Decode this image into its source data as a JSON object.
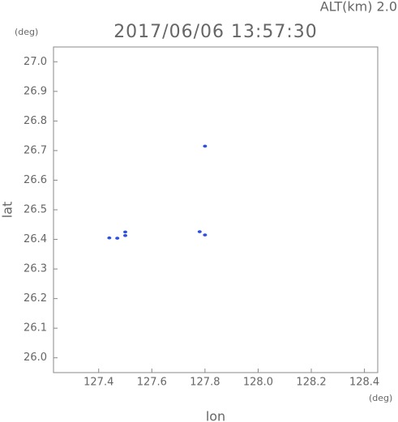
{
  "chart_data": {
    "type": "scatter",
    "title": "2017/06/06 13:57:30",
    "subtitle": "ALT(km) 2.0",
    "y_unit": "(deg)",
    "x_unit": "(deg)",
    "xlabel": "lon",
    "ylabel": "lat",
    "x": [
      127.44,
      127.47,
      127.5,
      127.5,
      127.78,
      127.8,
      127.8
    ],
    "values": [
      26.405,
      26.404,
      26.425,
      26.413,
      26.426,
      26.415,
      26.715
    ],
    "color": "#2f4fe0",
    "xlim": [
      127.23,
      128.45
    ],
    "ylim": [
      25.95,
      27.05
    ],
    "xticks": [
      127.4,
      127.6,
      127.8,
      {
        "value": 128,
        "label": "128.0"
      },
      128.2,
      128.4
    ],
    "yticks": [
      {
        "value": 26,
        "label": "26.0"
      },
      26.1,
      26.2,
      26.3,
      26.4,
      26.5,
      26.6,
      26.7,
      26.8,
      26.9,
      {
        "value": 27,
        "label": "27.0"
      }
    ]
  }
}
